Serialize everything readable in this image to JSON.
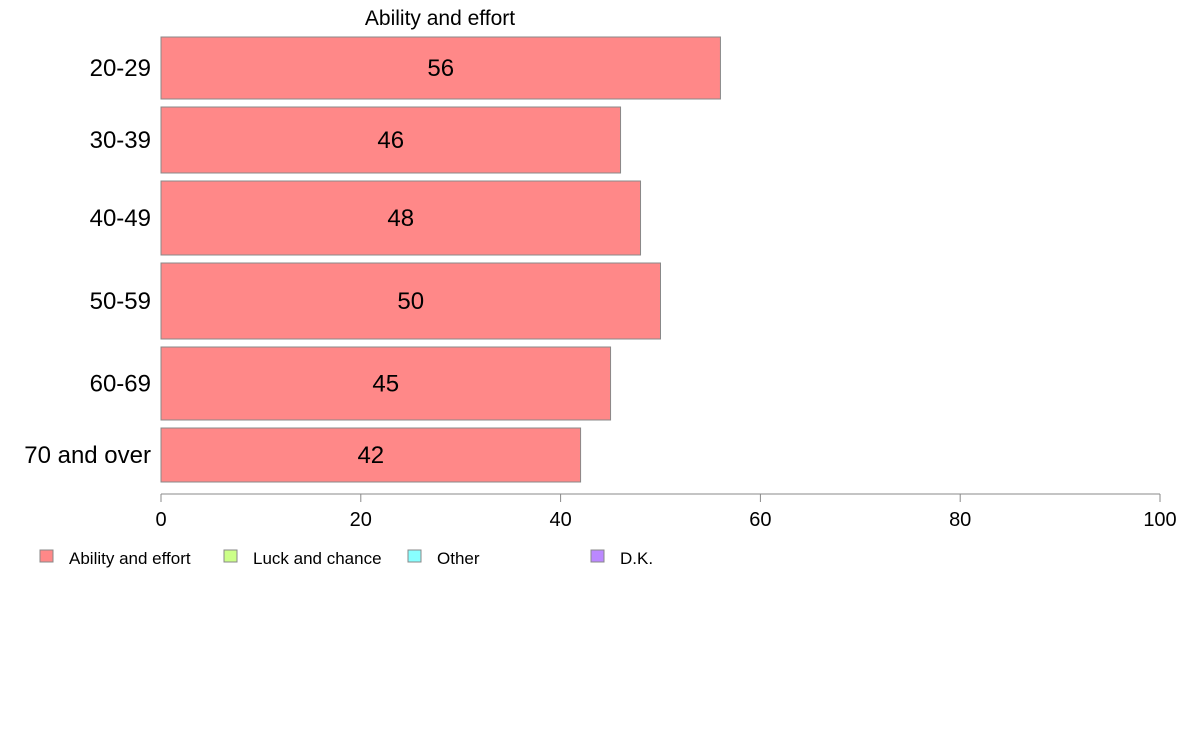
{
  "chart_data": {
    "type": "bar",
    "orientation": "horizontal",
    "title": "Ability and effort",
    "categories": [
      "20-29",
      "30-39",
      "40-49",
      "50-59",
      "60-69",
      "70 and over"
    ],
    "series": [
      {
        "name": "Ability and effort",
        "values": [
          56,
          46,
          48,
          50,
          45,
          42
        ]
      }
    ],
    "data_labels": [
      "56",
      "46",
      "48",
      "50",
      "45",
      "42"
    ],
    "xlim": [
      0,
      100
    ],
    "x_ticks": [
      0,
      20,
      40,
      60,
      80,
      100
    ],
    "x_tick_labels": [
      "0",
      "20",
      "40",
      "60",
      "80",
      "100"
    ],
    "grid": false,
    "legend_position": "bottom-left",
    "legend": [
      {
        "label": "Ability and effort",
        "color": "#ff8888"
      },
      {
        "label": "Luck and chance",
        "color": "#ccff88"
      },
      {
        "label": "Other",
        "color": "#88ffff"
      },
      {
        "label": "D.K.",
        "color": "#bb88ff"
      }
    ],
    "bar_color": "#ff8888",
    "bar_stroke": "#888888"
  }
}
